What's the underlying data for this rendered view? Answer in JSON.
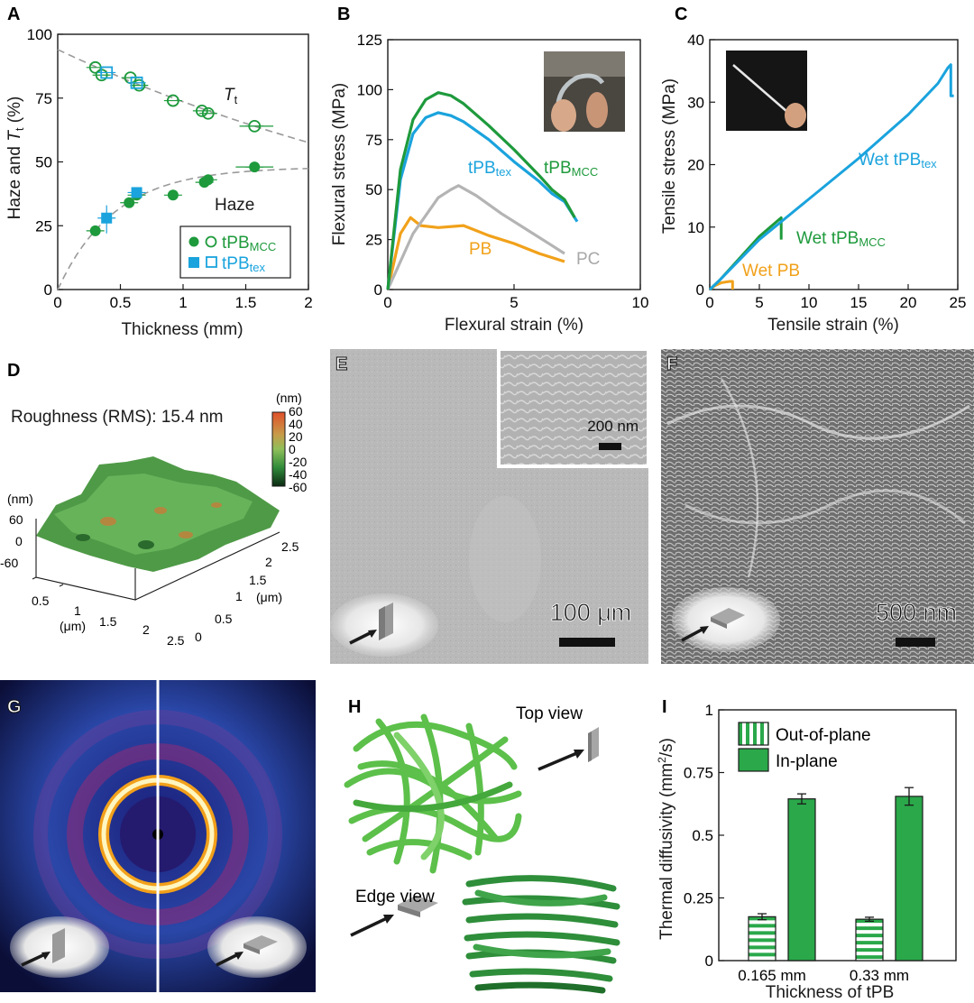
{
  "panels": {
    "A": {
      "label": "A",
      "ylabel_main": "Haze and ",
      "ylabel_T": "T",
      "ylabel_sub": "t",
      "ylabel_unit": " (%)",
      "xlabel": "Thickness (mm)",
      "curve_T": "T",
      "curve_T_sub": "t",
      "curve_haze": "Haze",
      "legend1_main": "tPB",
      "legend1_sub": "MCC",
      "legend2_main": "tPB",
      "legend2_sub": "tex"
    },
    "B": {
      "label": "B",
      "ylabel": "Flexural stress (MPa)",
      "xlabel": "Flexural strain (%)"
    },
    "C": {
      "label": "C",
      "ylabel": "Tensile stress (MPa)",
      "xlabel": "Tensile strain (%)"
    },
    "D": {
      "label": "D",
      "roughness_label": "Roughness (RMS): 15.4 nm",
      "colorbar_unit": "(nm)",
      "colorbar_ticks": [
        "60",
        "40",
        "20",
        "0",
        "-20",
        "-40",
        "-60"
      ],
      "z_unit": "(nm)",
      "z_ticks": [
        "60",
        "0",
        "-60"
      ],
      "x_unit": "(μm)",
      "x_ticks": [
        "0.5",
        "1",
        "1.5",
        "2",
        "2.5"
      ],
      "y_unit": "(μm)",
      "y_ticks": [
        "0",
        "0.5",
        "1",
        "1.5",
        "2",
        "2.5"
      ]
    },
    "E": {
      "label": "E",
      "scale_main": "100 μm",
      "scale_inset": "200 nm"
    },
    "F": {
      "label": "F",
      "scale_main": "500 nm"
    },
    "G": {
      "label": "G"
    },
    "H": {
      "label": "H",
      "top_view": "Top view",
      "edge_view": "Edge view"
    },
    "I": {
      "label": "I",
      "ylabel_main": "Thermal diffusivity (mm",
      "ylabel_sup": "2",
      "ylabel_end": "/s)",
      "xlabel": "Thickness of tPB"
    }
  },
  "chart_data": [
    {
      "panel": "A",
      "type": "scatter",
      "xlim": [
        0,
        2
      ],
      "ylim": [
        0,
        100
      ],
      "xticks": [
        0,
        0.5,
        1,
        1.5,
        2
      ],
      "xtick_labels": [
        "0",
        "0.5",
        "1",
        "1.5",
        "2"
      ],
      "yticks": [
        0,
        25,
        50,
        75,
        100
      ],
      "ytick_labels": [
        "0",
        "25",
        "50",
        "75",
        "100"
      ],
      "series": [
        {
          "name": "tPBMCC Haze",
          "marker": "filled-circle",
          "color": "#1e9a3c",
          "x": [
            0.3,
            0.57,
            0.63,
            0.92,
            1.17,
            1.2,
            1.57
          ],
          "y": [
            23,
            34,
            37,
            37,
            42,
            43,
            48
          ]
        },
        {
          "name": "tPBMCC Tt",
          "marker": "open-circle",
          "color": "#1e9a3c",
          "x": [
            0.3,
            0.35,
            0.58,
            0.65,
            0.92,
            1.15,
            1.2,
            1.57
          ],
          "y": [
            87,
            84,
            83,
            80,
            74,
            70,
            69,
            64
          ]
        },
        {
          "name": "tPBtex Haze",
          "marker": "filled-square",
          "color": "#1aa3dd",
          "x": [
            0.39,
            0.63
          ],
          "y": [
            28,
            38
          ]
        },
        {
          "name": "tPBtex Tt",
          "marker": "open-square",
          "color": "#1aa3dd",
          "x": [
            0.39,
            0.63
          ],
          "y": [
            85,
            81
          ]
        }
      ]
    },
    {
      "panel": "B",
      "type": "line",
      "xlim": [
        0,
        10
      ],
      "ylim": [
        0,
        125
      ],
      "xticks": [
        0,
        5,
        10
      ],
      "xtick_labels": [
        "0",
        "5",
        "10"
      ],
      "yticks": [
        0,
        25,
        50,
        75,
        100,
        125
      ],
      "ytick_labels": [
        "0",
        "25",
        "50",
        "75",
        "100",
        "125"
      ],
      "series": [
        {
          "name": "tPBMCC",
          "label_main": "tPB",
          "label_sub": "MCC",
          "color": "#1e9a3c",
          "x": [
            0,
            0.5,
            1.0,
            1.5,
            2.0,
            2.5,
            3.0,
            4.0,
            5.0,
            6.0,
            6.5,
            7.0,
            7.4
          ],
          "y": [
            0,
            60,
            85,
            95,
            98.5,
            97,
            93,
            82,
            70,
            57,
            50,
            45,
            36
          ]
        },
        {
          "name": "tPBtex",
          "label_main": "tPB",
          "label_sub": "tex",
          "color": "#1aa3dd",
          "x": [
            0,
            0.5,
            1.0,
            1.5,
            2.0,
            2.5,
            3.0,
            4.0,
            5.0,
            6.0,
            6.5,
            7.0,
            7.5
          ],
          "y": [
            0,
            55,
            78,
            86,
            88.5,
            87,
            84,
            75,
            64,
            54,
            48,
            44,
            34
          ]
        },
        {
          "name": "PC",
          "label_main": "PC",
          "label_sub": "",
          "color": "#b4b4b4",
          "x": [
            0,
            1.0,
            2.0,
            2.5,
            2.8,
            3.5,
            4.5,
            5.5,
            6.5,
            7.0
          ],
          "y": [
            0,
            28,
            46,
            50,
            52,
            47,
            38,
            30,
            22,
            18
          ]
        },
        {
          "name": "PB",
          "label_main": "PB",
          "label_sub": "",
          "color": "#f1a11a",
          "x": [
            0,
            0.5,
            0.9,
            1.3,
            2.0,
            3.0,
            4.0,
            5.0,
            6.0,
            7.0
          ],
          "y": [
            0,
            28,
            36,
            32,
            31,
            32,
            27,
            23,
            18,
            14
          ]
        }
      ]
    },
    {
      "panel": "C",
      "type": "line",
      "xlim": [
        0,
        25
      ],
      "ylim": [
        0,
        40
      ],
      "xticks": [
        0,
        5,
        10,
        15,
        20,
        25
      ],
      "xtick_labels": [
        "0",
        "5",
        "10",
        "15",
        "20",
        "25"
      ],
      "yticks": [
        0,
        10,
        20,
        30,
        40
      ],
      "ytick_labels": [
        "0",
        "10",
        "20",
        "30",
        "40"
      ],
      "series": [
        {
          "name": "Wet tPBtex",
          "label_main": "Wet tPB",
          "label_sub": "tex",
          "color": "#1aa3dd",
          "x": [
            0,
            1,
            5,
            10,
            15,
            20,
            23,
            24,
            24.3,
            24.3,
            24.6
          ],
          "y": [
            0,
            1.5,
            8,
            14.5,
            21,
            28,
            33,
            35.5,
            36,
            31,
            31
          ]
        },
        {
          "name": "Wet tPBMCC",
          "label_main": "Wet tPB",
          "label_sub": "MCC",
          "color": "#1e9a3c",
          "x": [
            0,
            1,
            3,
            5,
            7.2,
            7.2
          ],
          "y": [
            0,
            1.5,
            5,
            8.5,
            11.5,
            8
          ]
        },
        {
          "name": "Wet PB",
          "label_main": "Wet PB",
          "label_sub": "",
          "color": "#f1a11a",
          "x": [
            0,
            0.5,
            1.2,
            2.0,
            2.3,
            2.3
          ],
          "y": [
            0,
            0.6,
            1.1,
            1.3,
            1.3,
            0
          ]
        }
      ]
    },
    {
      "panel": "I",
      "type": "bar",
      "ylim": [
        0,
        1
      ],
      "yticks": [
        0,
        0.25,
        0.5,
        0.75,
        1
      ],
      "ytick_labels": [
        "0",
        "0.25",
        "0.5",
        "0.75",
        "1"
      ],
      "categories": [
        "0.165 mm",
        "0.33 mm"
      ],
      "series": [
        {
          "name": "Out-of-plane",
          "pattern": "striped",
          "color": "#2aa84a",
          "values": [
            0.175,
            0.165
          ],
          "err": [
            0.012,
            0.008
          ]
        },
        {
          "name": "In-plane",
          "pattern": "solid",
          "color": "#2aa84a",
          "values": [
            0.645,
            0.655
          ],
          "err": [
            0.02,
            0.035
          ]
        }
      ]
    }
  ]
}
